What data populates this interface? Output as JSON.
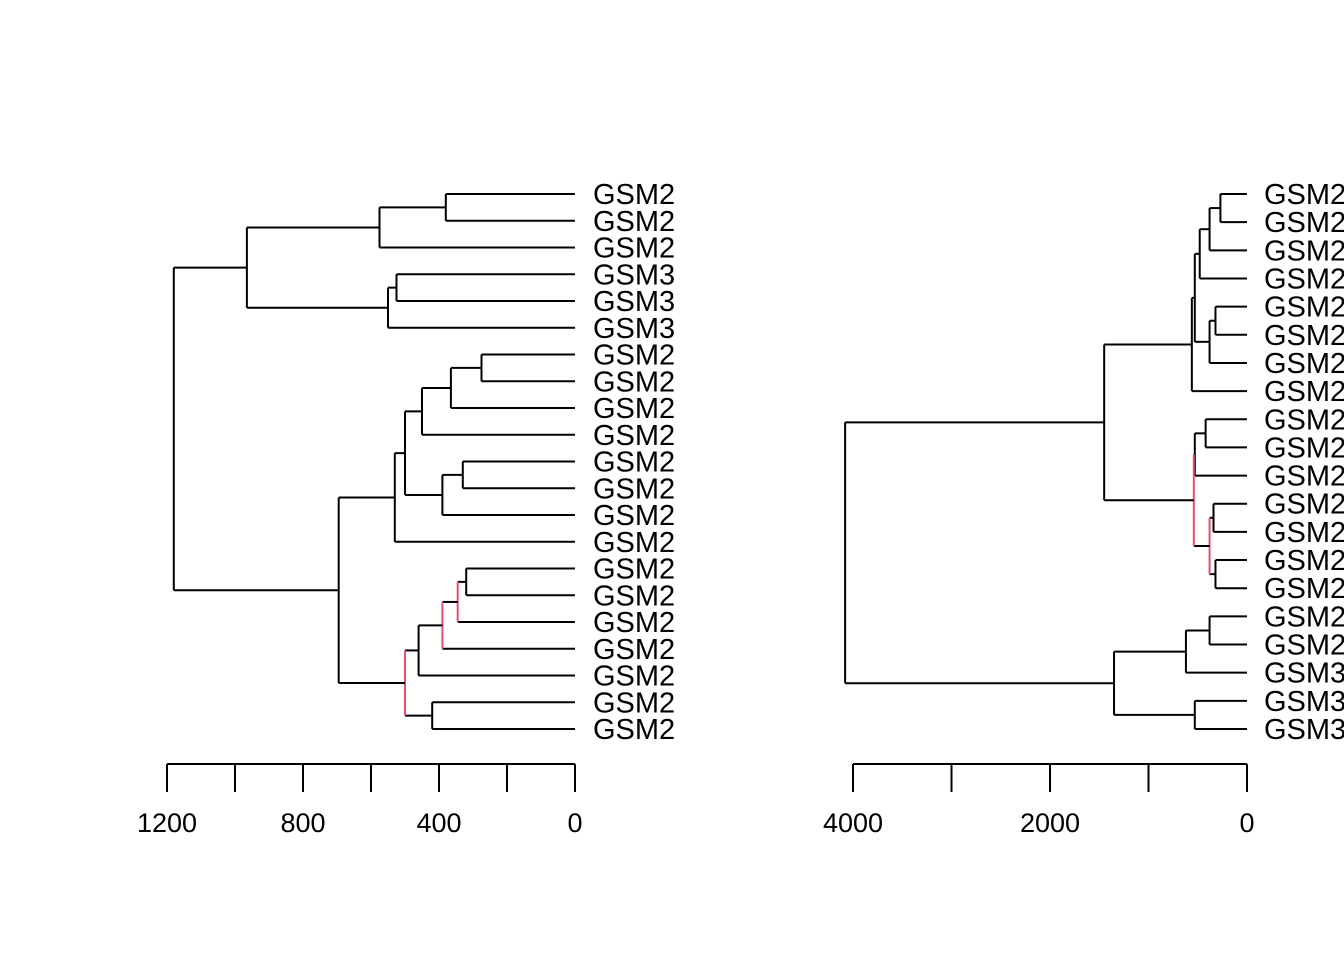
{
  "chart_data": [
    {
      "type": "dendrogram",
      "orientation": "horizontal",
      "axis_reversed": true,
      "xlim": [
        1200,
        0
      ],
      "ticks": [
        1200,
        1000,
        800,
        600,
        400,
        200,
        0
      ],
      "tick_labels": [
        "1200",
        "",
        "800",
        "",
        "400",
        "",
        "0"
      ],
      "leaf_labels": [
        "GSM2",
        "GSM2",
        "GSM2",
        "GSM3",
        "GSM3",
        "GSM3",
        "GSM2",
        "GSM2",
        "GSM2",
        "GSM2",
        "GSM2",
        "GSM2",
        "GSM2",
        "GSM2",
        "GSM2",
        "GSM2",
        "GSM2",
        "GSM2",
        "GSM2",
        "GSM2",
        "GSM2"
      ],
      "merges": [
        {
          "id": "a1",
          "children": [
            "L0",
            "L1"
          ],
          "height": 380
        },
        {
          "id": "a2",
          "children": [
            "a1",
            "L2"
          ],
          "height": 575
        },
        {
          "id": "a3",
          "children": [
            "L3",
            "L4"
          ],
          "height": 525
        },
        {
          "id": "a4",
          "children": [
            "a3",
            "L5"
          ],
          "height": 550
        },
        {
          "id": "a5",
          "children": [
            "a2",
            "a4"
          ],
          "height": 965
        },
        {
          "id": "b1",
          "children": [
            "L6",
            "L7"
          ],
          "height": 275
        },
        {
          "id": "b2",
          "children": [
            "b1",
            "L8"
          ],
          "height": 365
        },
        {
          "id": "b3",
          "children": [
            "b2",
            "L9"
          ],
          "height": 450
        },
        {
          "id": "b4",
          "children": [
            "L10",
            "L11"
          ],
          "height": 330
        },
        {
          "id": "b5",
          "children": [
            "b4",
            "L12"
          ],
          "height": 390
        },
        {
          "id": "b6",
          "children": [
            "b3",
            "b5"
          ],
          "height": 500
        },
        {
          "id": "b7",
          "children": [
            "b6",
            "L13"
          ],
          "height": 530
        },
        {
          "id": "c1",
          "children": [
            "L14",
            "L15"
          ],
          "height": 320
        },
        {
          "id": "c2",
          "children": [
            "c1",
            "L16"
          ],
          "height": 345,
          "highlight": true
        },
        {
          "id": "c3",
          "children": [
            "c2",
            "L17"
          ],
          "height": 390,
          "highlight": true
        },
        {
          "id": "c4",
          "children": [
            "c3",
            "L18"
          ],
          "height": 460
        },
        {
          "id": "c5",
          "children": [
            "L19",
            "L20"
          ],
          "height": 420
        },
        {
          "id": "c6",
          "children": [
            "c4",
            "c5"
          ],
          "height": 500,
          "highlight": true
        },
        {
          "id": "c7",
          "children": [
            "b7",
            "c6"
          ],
          "height": 695
        },
        {
          "id": "root",
          "children": [
            "a5",
            "c7"
          ],
          "height": 1180
        }
      ],
      "highlight_color": "#e2526e"
    },
    {
      "type": "dendrogram",
      "orientation": "horizontal",
      "axis_reversed": true,
      "xlim": [
        4000,
        0
      ],
      "ticks": [
        4000,
        3000,
        2000,
        1000,
        0
      ],
      "tick_labels": [
        "4000",
        "",
        "2000",
        "",
        "0"
      ],
      "leaf_labels": [
        "GSM2",
        "GSM2",
        "GSM2",
        "GSM2",
        "GSM2",
        "GSM2",
        "GSM2",
        "GSM2",
        "GSM2",
        "GSM2",
        "GSM2",
        "GSM2",
        "GSM2",
        "GSM2",
        "GSM2",
        "GSM2",
        "GSM2",
        "GSM3",
        "GSM3",
        "GSM3"
      ],
      "merges": [
        {
          "id": "a1",
          "children": [
            "L0",
            "L1"
          ],
          "height": 270
        },
        {
          "id": "a2",
          "children": [
            "a1",
            "L2"
          ],
          "height": 380
        },
        {
          "id": "a3",
          "children": [
            "a2",
            "L3"
          ],
          "height": 480
        },
        {
          "id": "a4",
          "children": [
            "L4",
            "L5"
          ],
          "height": 320
        },
        {
          "id": "a5",
          "children": [
            "a4",
            "L6"
          ],
          "height": 380
        },
        {
          "id": "a6",
          "children": [
            "a3",
            "a5"
          ],
          "height": 530
        },
        {
          "id": "a7",
          "children": [
            "a6",
            "L7"
          ],
          "height": 560
        },
        {
          "id": "b1",
          "children": [
            "L8",
            "L9"
          ],
          "height": 420
        },
        {
          "id": "b2",
          "children": [
            "b1",
            "L10"
          ],
          "height": 530
        },
        {
          "id": "b3",
          "children": [
            "L11",
            "L12"
          ],
          "height": 340
        },
        {
          "id": "b4",
          "children": [
            "L13",
            "L14"
          ],
          "height": 320
        },
        {
          "id": "b5",
          "children": [
            "b3",
            "b4"
          ],
          "height": 380,
          "highlight": true
        },
        {
          "id": "b6",
          "children": [
            "b2",
            "b5"
          ],
          "height": 540,
          "highlight": true
        },
        {
          "id": "c1",
          "children": [
            "a7",
            "b6"
          ],
          "height": 1450
        },
        {
          "id": "d1",
          "children": [
            "L15",
            "L16"
          ],
          "height": 380
        },
        {
          "id": "d2",
          "children": [
            "d1",
            "L17"
          ],
          "height": 620
        },
        {
          "id": "d3",
          "children": [
            "L18",
            "L19"
          ],
          "height": 530
        },
        {
          "id": "d4",
          "children": [
            "d2",
            "d3"
          ],
          "height": 1350
        },
        {
          "id": "root",
          "children": [
            "c1",
            "d4"
          ],
          "height": 4080
        }
      ],
      "highlight_color": "#e2526e"
    }
  ]
}
